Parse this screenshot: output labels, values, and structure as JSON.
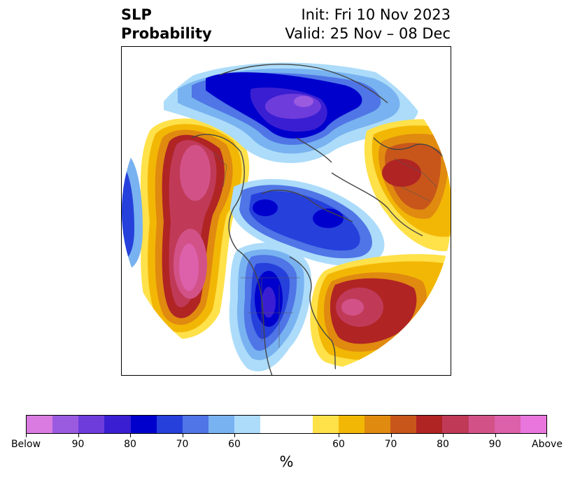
{
  "title": {
    "left_line1": "SLP",
    "left_line2": "Probability",
    "right_line1": "Init: Fri 10 Nov 2023",
    "right_line2": "Valid: 25 Nov – 08 Dec"
  },
  "colorbar": {
    "unit": "%",
    "colors": [
      "#d97be0",
      "#9b5be0",
      "#6f3cdc",
      "#3a1fd2",
      "#0000cc",
      "#2640dc",
      "#4f75e6",
      "#78b2f0",
      "#acdcfa",
      "#ffffff",
      "#ffe14a",
      "#f2b705",
      "#e08a10",
      "#c8561a",
      "#b02424",
      "#c03a58",
      "#d25288",
      "#dc60aa",
      "#e876dc"
    ],
    "ticks": [
      "Below",
      "90",
      "80",
      "70",
      "60",
      "60",
      "70",
      "80",
      "90",
      "Above"
    ]
  },
  "map": {
    "projection": "north-polar-stereographic",
    "anomaly_regions": [
      {
        "name": "alaska-pacific-above",
        "category": "above",
        "peak": "Above"
      },
      {
        "name": "north-atlantic-above",
        "category": "above",
        "peak": "90"
      },
      {
        "name": "scandinavia-above",
        "category": "above",
        "peak": "80"
      },
      {
        "name": "siberia-below",
        "category": "below",
        "peak": "90"
      },
      {
        "name": "canada-arctic-below",
        "category": "below",
        "peak": "80"
      },
      {
        "name": "north-america-below",
        "category": "below",
        "peak": "80"
      }
    ]
  }
}
